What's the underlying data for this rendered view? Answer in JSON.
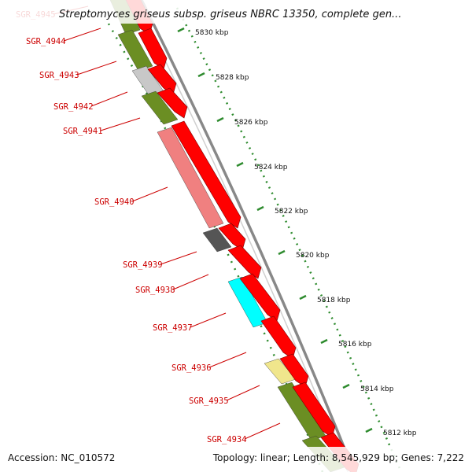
{
  "title": "Streptomyces griseus subsp. griseus NBRC 13350, complete gen...",
  "footer": {
    "accession": "Accession: NC_010572",
    "summary": "Topology: linear; Length: 8,545,929 bp; Genes: 7,222"
  },
  "colors": {
    "forward_cds": "#ff0000",
    "label": "#cc0000",
    "ruler": "#2e8b2e",
    "backbone": "#888888"
  },
  "kbp_ticks": [
    "5830 kbp",
    "5828 kbp",
    "5826 kbp",
    "5824 kbp",
    "5822 kbp",
    "5820 kbp",
    "5818 kbp",
    "5816 kbp",
    "5814 kbp",
    "5812 kbp"
  ],
  "genes": [
    {
      "id": "SGR_4945",
      "color": "#6b8e23"
    },
    {
      "id": "SGR_4944",
      "color": "#6b8e23"
    },
    {
      "id": "SGR_4943",
      "color": "#c8c8c8"
    },
    {
      "id": "SGR_4942",
      "color": "#6b8e23"
    },
    {
      "id": "SGR_4941",
      "color": "#6b8e23"
    },
    {
      "id": "SGR_4940",
      "color": "#f08080"
    },
    {
      "id": "SGR_4939",
      "color": "#555555"
    },
    {
      "id": "SGR_4938",
      "color": "#00ffff"
    },
    {
      "id": "SGR_4937",
      "color": "#00e5ff"
    },
    {
      "id": "SGR_4936",
      "color": "#f0e68c"
    },
    {
      "id": "SGR_4935",
      "color": "#6b8e23"
    },
    {
      "id": "SGR_4934",
      "color": "#6b8e23"
    }
  ]
}
